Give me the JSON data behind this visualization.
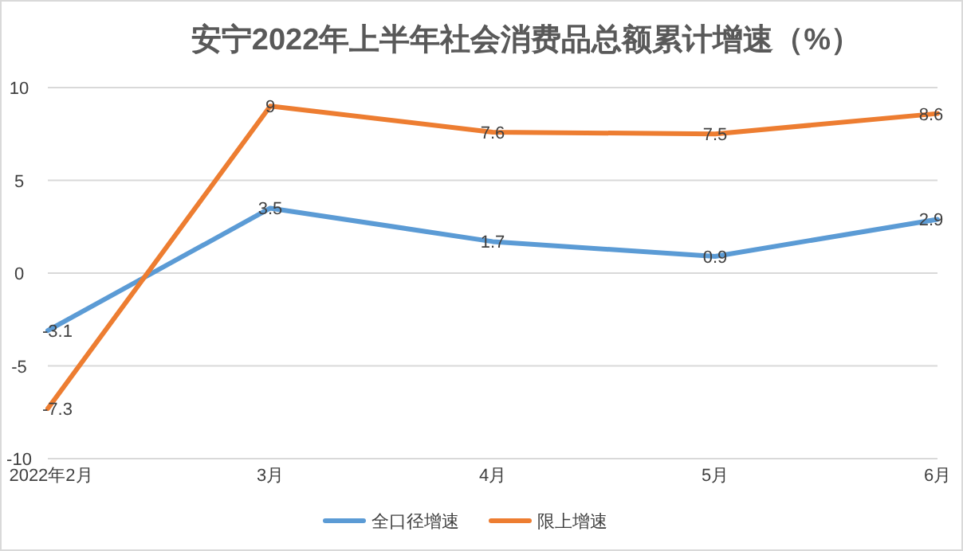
{
  "chart_data": {
    "type": "line",
    "title": "安宁2022年上半年社会消费品总额累计增速（%）",
    "categories": [
      "2022年2月",
      "3月",
      "4月",
      "5月",
      "6月"
    ],
    "series": [
      {
        "name": "全口径增速",
        "color": "#5b9bd5",
        "values": [
          -3.1,
          3.5,
          1.7,
          0.9,
          2.9
        ]
      },
      {
        "name": "限上增速",
        "color": "#ed7d31",
        "values": [
          -7.3,
          9,
          7.6,
          7.5,
          8.6
        ]
      }
    ],
    "ylim": [
      -10,
      10
    ],
    "yticks": [
      -10,
      -5,
      0,
      5,
      10
    ],
    "grid": "y",
    "data_labels": true,
    "legend": "bottom",
    "marker": "none",
    "line_style": "solid"
  }
}
